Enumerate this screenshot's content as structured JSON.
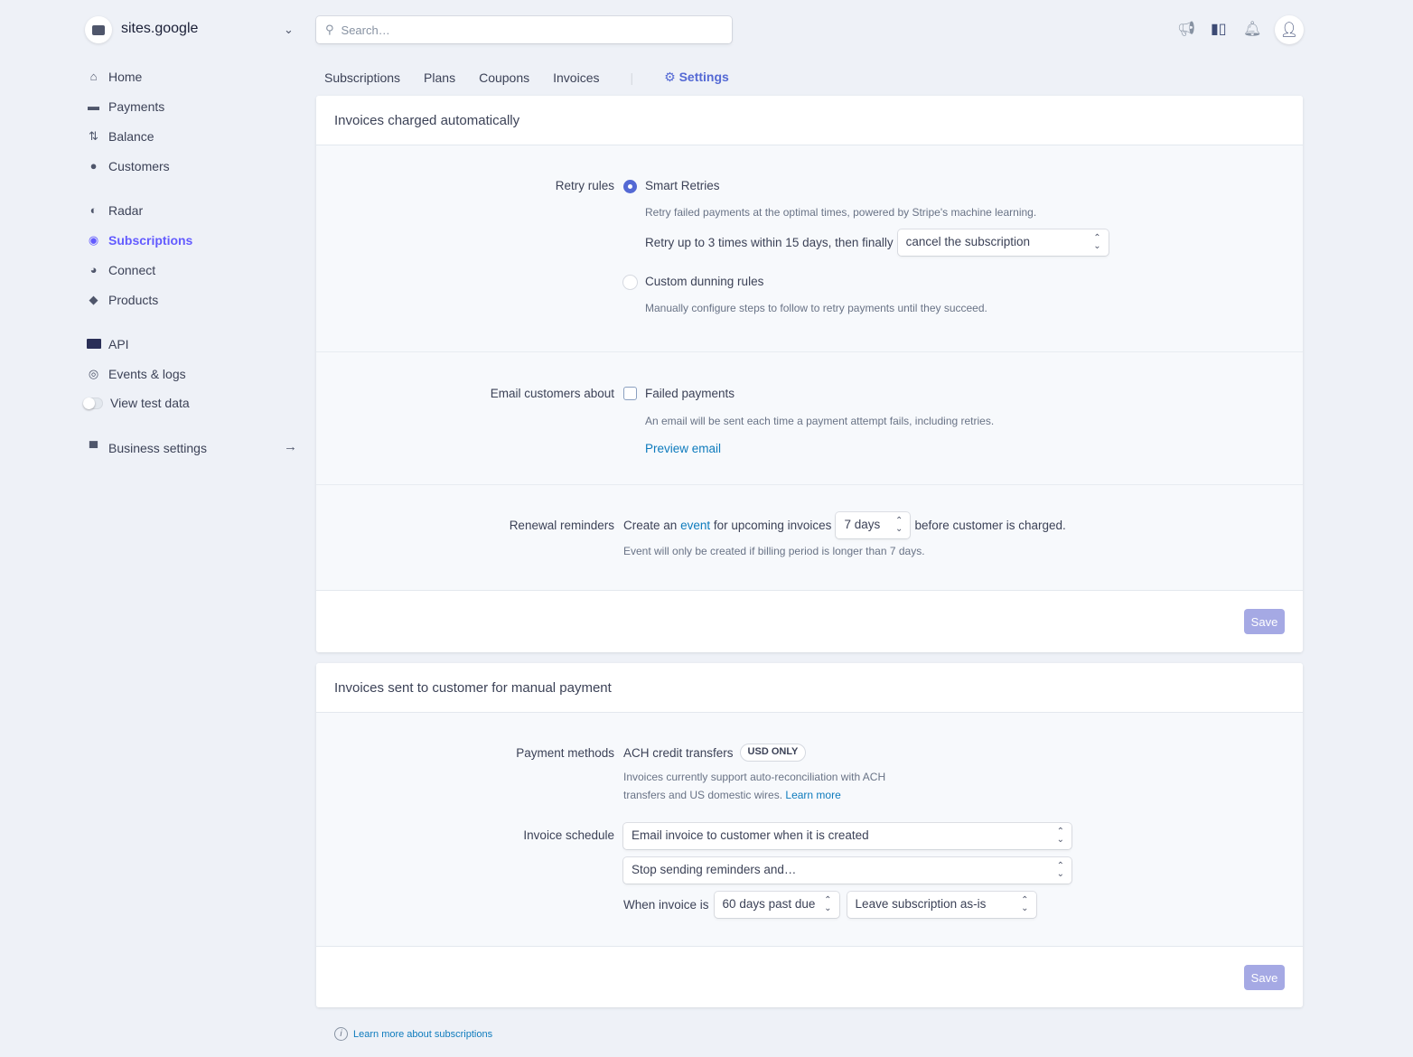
{
  "account": {
    "name": "sites.google"
  },
  "sidebar": {
    "items": [
      {
        "label": "Home",
        "icon": "home-icon"
      },
      {
        "label": "Payments",
        "icon": "payments-icon"
      },
      {
        "label": "Balance",
        "icon": "balance-icon"
      },
      {
        "label": "Customers",
        "icon": "customers-icon"
      },
      {
        "label": "Radar",
        "icon": "radar-icon"
      },
      {
        "label": "Subscriptions",
        "icon": "subscriptions-icon",
        "active": true
      },
      {
        "label": "Connect",
        "icon": "connect-icon"
      },
      {
        "label": "Products",
        "icon": "products-icon"
      },
      {
        "label": "API",
        "icon": "api-icon"
      },
      {
        "label": "Events & logs",
        "icon": "events-icon"
      },
      {
        "label": "View test data",
        "icon": "toggle-icon"
      },
      {
        "label": "Business settings",
        "icon": "business-icon"
      }
    ]
  },
  "search": {
    "placeholder": "Search…"
  },
  "tabs": [
    "Subscriptions",
    "Plans",
    "Coupons",
    "Invoices",
    "Settings"
  ],
  "colors": {
    "accent": "#5469d4",
    "link": "#0e7bbd",
    "save": "#a5a9e4"
  },
  "auto": {
    "title": "Invoices charged automatically",
    "retry_label": "Retry rules",
    "smart_title": "Smart Retries",
    "smart_desc": "Retry failed payments at the optimal times, powered by Stripe's machine learning.",
    "retry_text": "Retry up to 3 times within 15 days, then finally",
    "retry_select": "cancel the subscription",
    "custom_title": "Custom dunning rules",
    "custom_desc": "Manually configure steps to follow to retry payments until they succeed.",
    "email_label": "Email customers about",
    "failed_title": "Failed payments",
    "failed_desc": "An email will be sent each time a payment attempt fails, including retries.",
    "preview": "Preview email",
    "renewal_label": "Renewal reminders",
    "renewal_pre": "Create an",
    "renewal_link": "event",
    "renewal_mid": "for upcoming invoices",
    "renewal_select": "7 days",
    "renewal_post": "before customer is charged.",
    "renewal_desc": "Event will only be created if billing period is longer than 7 days.",
    "save": "Save"
  },
  "manual": {
    "title": "Invoices sent to customer for manual payment",
    "pm_label": "Payment methods",
    "pm_value": "ACH credit transfers",
    "badge": "USD ONLY",
    "pm_desc1": "Invoices currently support auto-reconciliation with ACH",
    "pm_desc2": "transfers and US domestic wires.",
    "learn": "Learn more",
    "schedule_label": "Invoice schedule",
    "schedule_select": "Email invoice to customer when it is created",
    "reminder_select": "Stop sending reminders and…",
    "when_text": "When invoice is",
    "due_select": "60 days past due",
    "action_select": "Leave subscription as-is",
    "save": "Save"
  },
  "footer": {
    "link": "Learn more about subscriptions"
  }
}
